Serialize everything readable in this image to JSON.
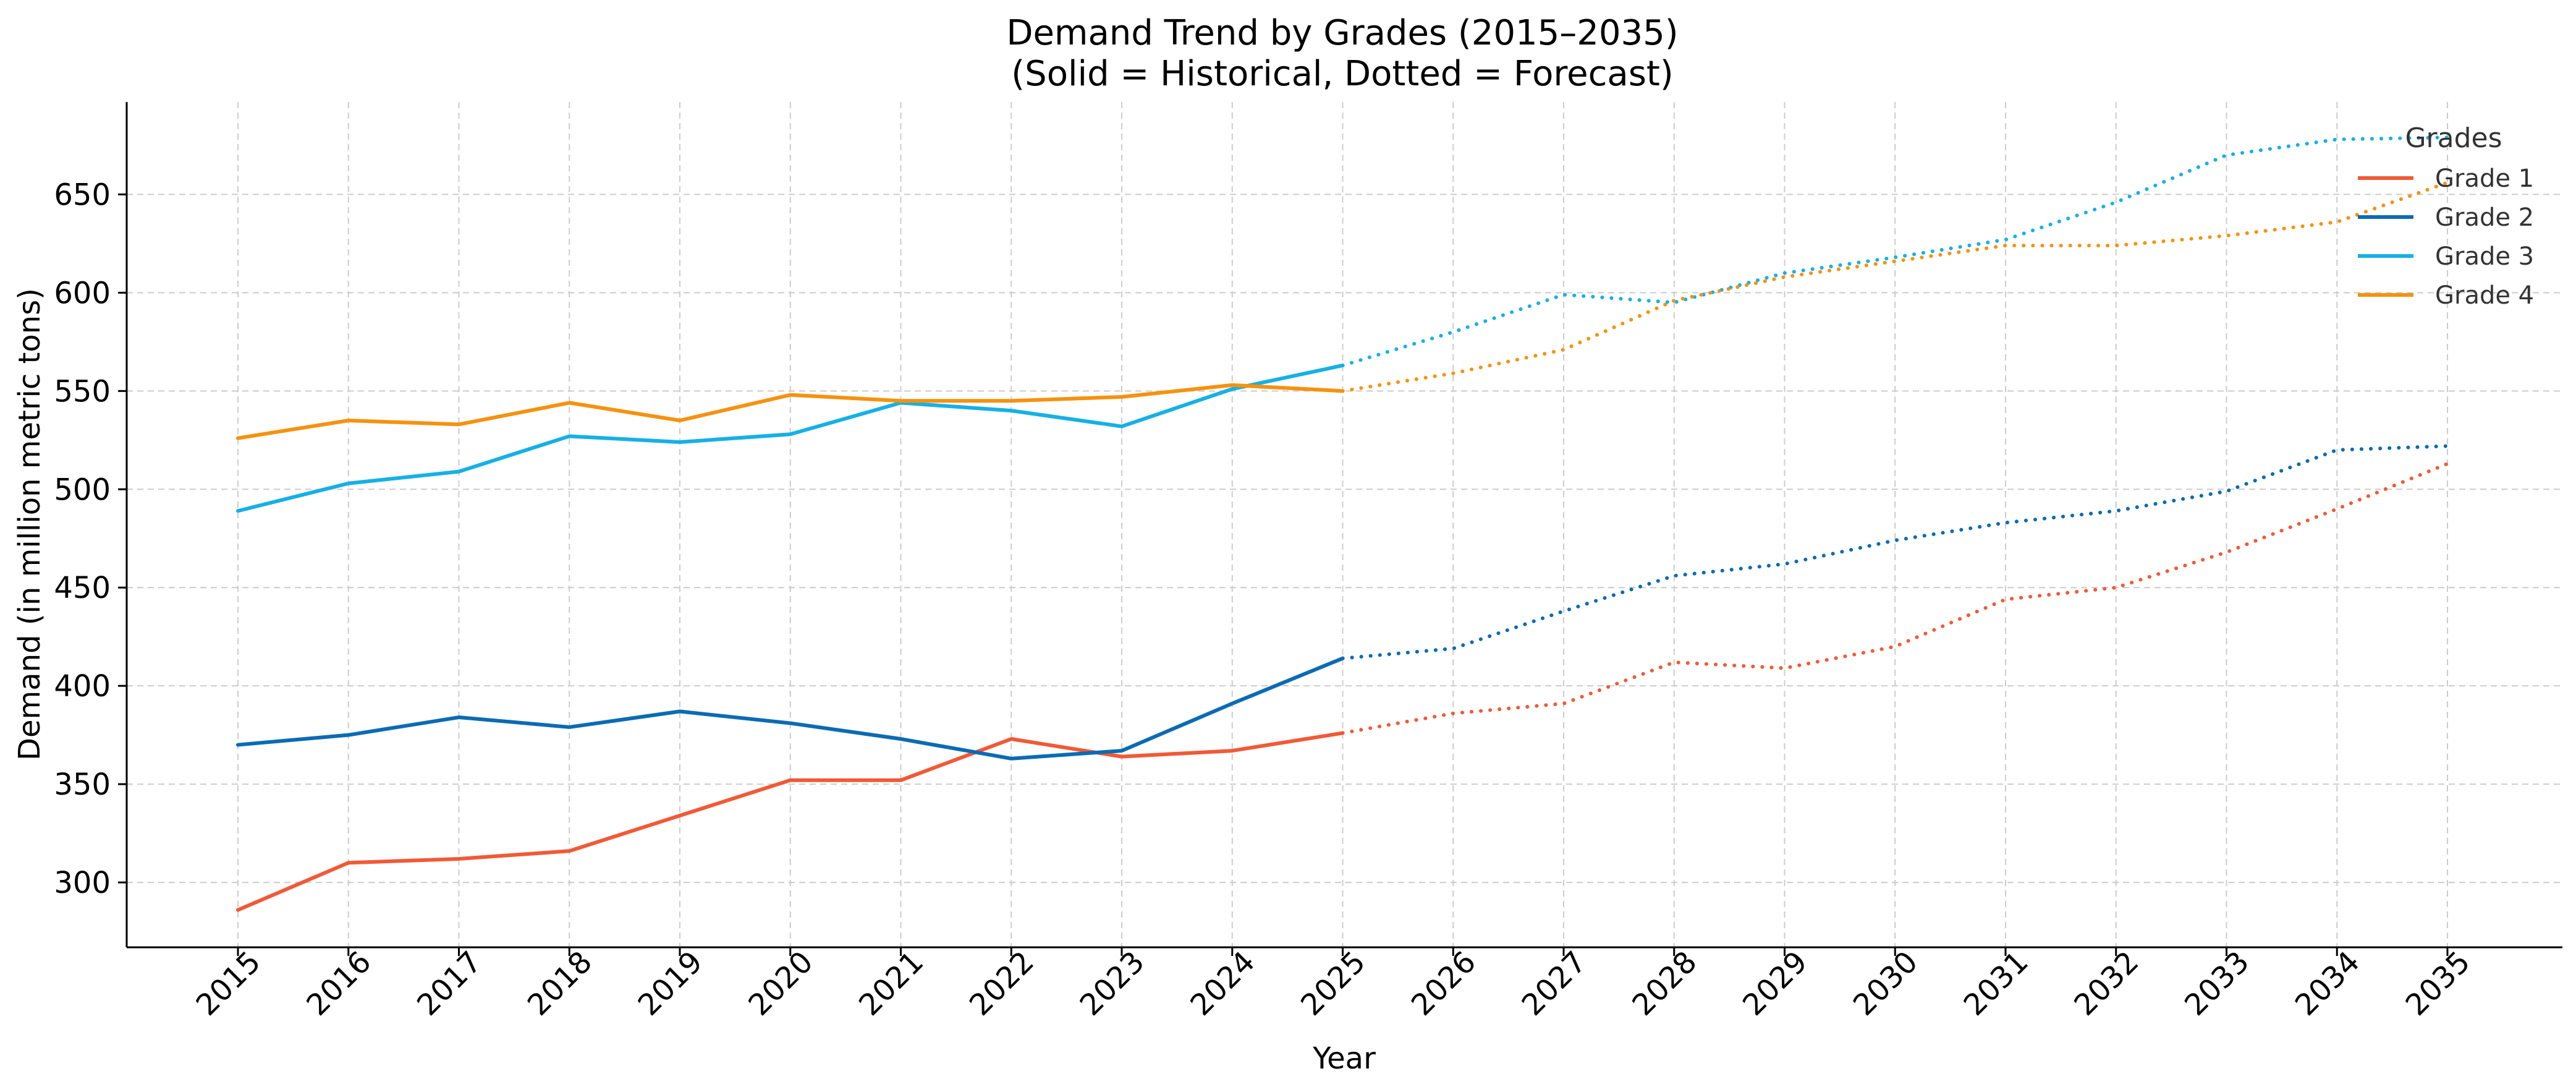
{
  "chart_data": {
    "type": "line",
    "title": "Demand Trend by Grades (2015–2035)",
    "subtitle": "(Solid = Historical, Dotted = Forecast)",
    "xlabel": "Year",
    "ylabel": "Demand (in million metric tons)",
    "x": [
      2015,
      2016,
      2017,
      2018,
      2019,
      2020,
      2021,
      2022,
      2023,
      2024,
      2025,
      2026,
      2027,
      2028,
      2029,
      2030,
      2031,
      2032,
      2033,
      2034,
      2035
    ],
    "historical_end": 2025,
    "ylim": [
      267,
      697
    ],
    "yticks": [
      300,
      350,
      400,
      450,
      500,
      550,
      600,
      650
    ],
    "grid": true,
    "legend": {
      "title": "Grades",
      "position": "top-right"
    },
    "series": [
      {
        "name": "Grade 1",
        "color": "#f05a37",
        "values": [
          286,
          310,
          312,
          316,
          334,
          352,
          352,
          373,
          364,
          367,
          376,
          386,
          391,
          412,
          409,
          420,
          444,
          450,
          468,
          490,
          513
        ]
      },
      {
        "name": "Grade 2",
        "color": "#0b6bb3",
        "values": [
          370,
          375,
          384,
          379,
          387,
          381,
          373,
          363,
          367,
          391,
          414,
          419,
          438,
          456,
          462,
          474,
          483,
          489,
          499,
          520,
          522
        ]
      },
      {
        "name": "Grade 3",
        "color": "#16b0e5",
        "values": [
          489,
          503,
          509,
          527,
          524,
          528,
          544,
          540,
          532,
          551,
          563,
          580,
          599,
          595,
          610,
          618,
          627,
          646,
          670,
          678,
          679
        ]
      },
      {
        "name": "Grade 4",
        "color": "#f5920f",
        "values": [
          526,
          535,
          533,
          544,
          535,
          548,
          545,
          545,
          547,
          553,
          550,
          559,
          571,
          596,
          608,
          616,
          624,
          624,
          629,
          636,
          656
        ]
      }
    ]
  }
}
